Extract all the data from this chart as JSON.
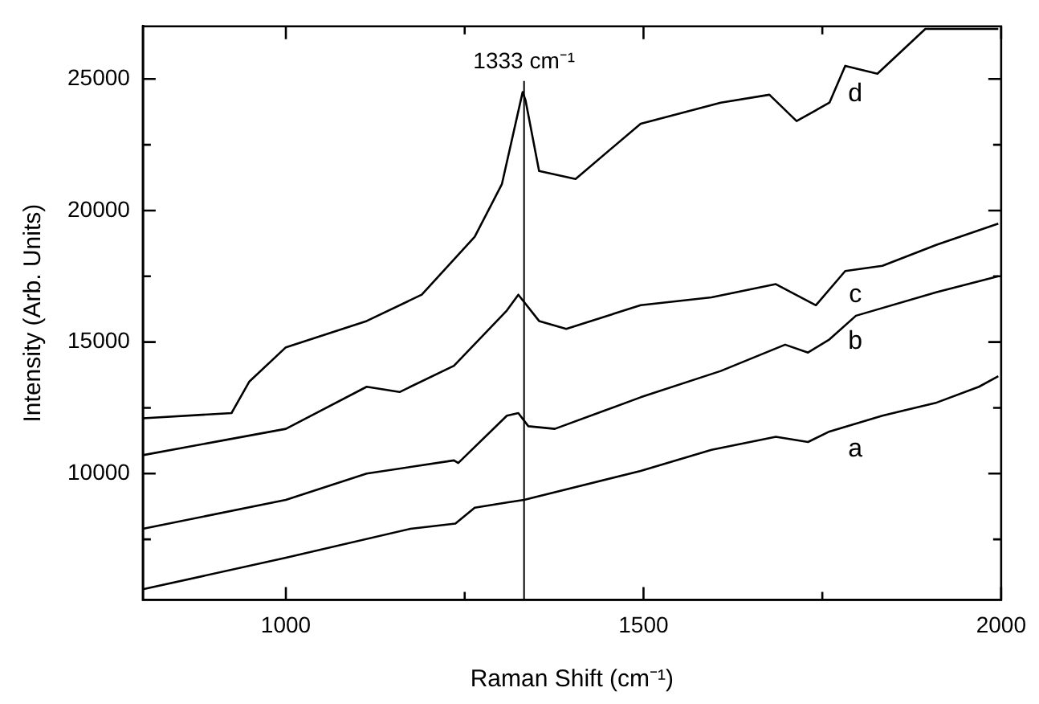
{
  "chart_data": {
    "type": "line",
    "xlabel": "Raman Shift (cm⁻¹)",
    "ylabel": "Intensity (Arb. Units)",
    "xlim": [
      800,
      2000
    ],
    "xticks": [
      1000,
      {
        "value": 1250,
        "label": null
      },
      1500,
      {
        "value": 1750,
        "label": null
      },
      2000
    ],
    "ylim": [
      5200,
      27000
    ],
    "yticks": [
      {
        "value": 7500,
        "label": null
      },
      10000,
      {
        "value": 12500,
        "label": null
      },
      15000,
      {
        "value": 17500,
        "label": null
      },
      20000,
      {
        "value": 22500,
        "label": null
      },
      25000
    ],
    "grid": false,
    "legend": false,
    "marker": "none",
    "line_style": "solid",
    "series": [
      {
        "name": "a",
        "color": "#000000",
        "x": [
          800,
          1000,
          1174,
          1237,
          1264,
          1309,
          1333,
          1496,
          1595,
          1685,
          1730,
          1760,
          1834,
          1910,
          1969,
          1996
        ],
        "values": [
          5600,
          6800,
          7900,
          8100,
          8700,
          8900,
          9000,
          10100,
          10900,
          11400,
          11200,
          11600,
          12200,
          12700,
          13300,
          13700
        ]
      },
      {
        "name": "b",
        "color": "#000000",
        "x": [
          800,
          1000,
          1113,
          1235,
          1241,
          1309,
          1325,
          1339,
          1376,
          1496,
          1608,
          1698,
          1730,
          1760,
          1797,
          1910,
          1996
        ],
        "values": [
          7900,
          9000,
          10000,
          10500,
          10400,
          12200,
          12300,
          11800,
          11700,
          12900,
          13900,
          14900,
          14600,
          15100,
          16000,
          16900,
          17500
        ]
      },
      {
        "name": "c",
        "color": "#000000",
        "x": [
          800,
          1000,
          1113,
          1159,
          1235,
          1309,
          1325,
          1354,
          1392,
          1496,
          1595,
          1685,
          1741,
          1782,
          1834,
          1910,
          1996
        ],
        "values": [
          10700,
          11700,
          13300,
          13100,
          14100,
          16200,
          16800,
          15800,
          15500,
          16400,
          16700,
          17200,
          16400,
          17700,
          17900,
          18700,
          19500
        ]
      },
      {
        "name": "d",
        "color": "#000000",
        "x": [
          800,
          924,
          949,
          1000,
          1113,
          1190,
          1264,
          1302,
          1331,
          1335,
          1354,
          1405,
          1496,
          1608,
          1676,
          1714,
          1760,
          1782,
          1827,
          1894,
          1920,
          1996
        ],
        "values": [
          12100,
          12300,
          13500,
          14800,
          15800,
          16800,
          19000,
          21000,
          24500,
          24200,
          21500,
          21200,
          23300,
          24100,
          24400,
          23400,
          24100,
          25500,
          25200,
          26900,
          26900,
          26900
        ]
      }
    ],
    "ref_lines": [
      {
        "axis": "x",
        "value": 1333,
        "label": "1333 cm⁻¹",
        "color": "#000000"
      }
    ]
  }
}
